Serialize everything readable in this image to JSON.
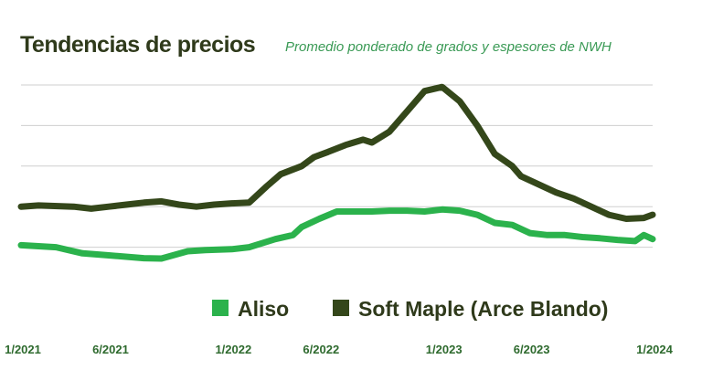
{
  "chart_data": {
    "type": "line",
    "title": "Tendencias de precios",
    "subtitle": "Promedio ponderado de grados y espesores de NWH",
    "xlabel": "",
    "ylabel": "",
    "x_range": [
      0,
      36
    ],
    "ylim": [
      0,
      5
    ],
    "grid": true,
    "y_gridlines": [
      1,
      2,
      3,
      4,
      5
    ],
    "x_ticks": [
      {
        "x": 0,
        "label": "1/2021"
      },
      {
        "x": 5,
        "label": "6/2021"
      },
      {
        "x": 12,
        "label": "1/2022"
      },
      {
        "x": 17,
        "label": "6/2022"
      },
      {
        "x": 24,
        "label": "1/2023"
      },
      {
        "x": 29,
        "label": "6/2023"
      },
      {
        "x": 36,
        "label": "1/2024"
      }
    ],
    "legend_position": "bottom-right",
    "series": [
      {
        "name": "Aliso",
        "color": "#2bb24c",
        "points": [
          [
            0,
            1.05
          ],
          [
            2,
            1.0
          ],
          [
            3.5,
            0.85
          ],
          [
            5,
            0.8
          ],
          [
            7,
            0.73
          ],
          [
            8,
            0.72
          ],
          [
            9.5,
            0.9
          ],
          [
            10.5,
            0.93
          ],
          [
            12,
            0.95
          ],
          [
            13,
            1.0
          ],
          [
            14.5,
            1.2
          ],
          [
            15.5,
            1.3
          ],
          [
            16,
            1.5
          ],
          [
            17,
            1.7
          ],
          [
            18,
            1.88
          ],
          [
            19,
            1.88
          ],
          [
            20,
            1.88
          ],
          [
            21,
            1.9
          ],
          [
            22,
            1.9
          ],
          [
            23,
            1.88
          ],
          [
            24,
            1.93
          ],
          [
            25,
            1.9
          ],
          [
            26,
            1.8
          ],
          [
            27,
            1.6
          ],
          [
            28,
            1.55
          ],
          [
            29,
            1.35
          ],
          [
            30,
            1.3
          ],
          [
            31,
            1.3
          ],
          [
            32,
            1.25
          ],
          [
            33,
            1.22
          ],
          [
            34,
            1.18
          ],
          [
            35,
            1.15
          ],
          [
            35.5,
            1.3
          ],
          [
            36,
            1.2
          ]
        ]
      },
      {
        "name": "Soft Maple (Arce Blando)",
        "color": "#34471a",
        "points": [
          [
            0,
            2.0
          ],
          [
            1,
            2.03
          ],
          [
            3,
            2.0
          ],
          [
            4,
            1.95
          ],
          [
            5,
            2.0
          ],
          [
            6,
            2.05
          ],
          [
            7,
            2.1
          ],
          [
            8,
            2.13
          ],
          [
            9,
            2.05
          ],
          [
            10,
            2.0
          ],
          [
            11,
            2.05
          ],
          [
            12,
            2.08
          ],
          [
            13,
            2.1
          ],
          [
            14,
            2.5
          ],
          [
            14.8,
            2.8
          ],
          [
            16,
            3.0
          ],
          [
            16.7,
            3.22
          ],
          [
            17.5,
            3.35
          ],
          [
            18.5,
            3.52
          ],
          [
            19.5,
            3.65
          ],
          [
            20,
            3.58
          ],
          [
            21,
            3.85
          ],
          [
            22,
            4.35
          ],
          [
            23,
            4.85
          ],
          [
            24,
            4.95
          ],
          [
            25,
            4.6
          ],
          [
            26,
            4.0
          ],
          [
            27,
            3.3
          ],
          [
            28,
            3.0
          ],
          [
            28.5,
            2.75
          ],
          [
            29.5,
            2.55
          ],
          [
            30.5,
            2.35
          ],
          [
            31.5,
            2.2
          ],
          [
            32.5,
            2.0
          ],
          [
            33.5,
            1.8
          ],
          [
            34.5,
            1.7
          ],
          [
            35.5,
            1.72
          ],
          [
            36,
            1.8
          ]
        ]
      }
    ]
  }
}
